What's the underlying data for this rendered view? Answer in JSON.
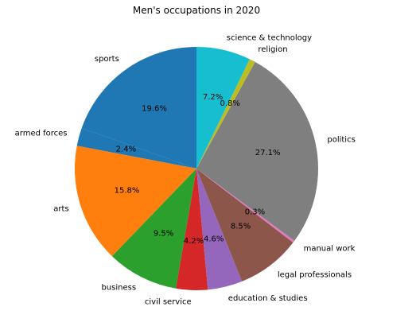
{
  "chart_data": {
    "type": "pie",
    "title": "Men's occupations in 2020",
    "start_angle_deg": 90,
    "direction": "counterclockwise",
    "slices": [
      {
        "label": "sports",
        "value": 19.6,
        "pct_label": "19.6%",
        "color": "#1f77b4"
      },
      {
        "label": "armed forces",
        "value": 2.4,
        "pct_label": "2.4%",
        "color": "#1f77b4"
      },
      {
        "label": "arts",
        "value": 15.8,
        "pct_label": "15.8%",
        "color": "#ff7f0e"
      },
      {
        "label": "business",
        "value": 9.5,
        "pct_label": "9.5%",
        "color": "#2ca02c"
      },
      {
        "label": "civil service",
        "value": 4.2,
        "pct_label": "4.2%",
        "color": "#d62728"
      },
      {
        "label": "education & studies",
        "value": 4.6,
        "pct_label": "4.6%",
        "color": "#9467bd"
      },
      {
        "label": "legal professionals",
        "value": 8.5,
        "pct_label": "8.5%",
        "color": "#8c564b"
      },
      {
        "label": "manual work",
        "value": 0.3,
        "pct_label": "0.3%",
        "color": "#e377c2"
      },
      {
        "label": "politics",
        "value": 27.1,
        "pct_label": "27.1%",
        "color": "#7f7f7f"
      },
      {
        "label": "religion",
        "value": 0.8,
        "pct_label": "0.8%",
        "color": "#bcbd22"
      },
      {
        "label": "science & technology",
        "value": 7.2,
        "pct_label": "7.2%",
        "color": "#17becf"
      }
    ]
  }
}
